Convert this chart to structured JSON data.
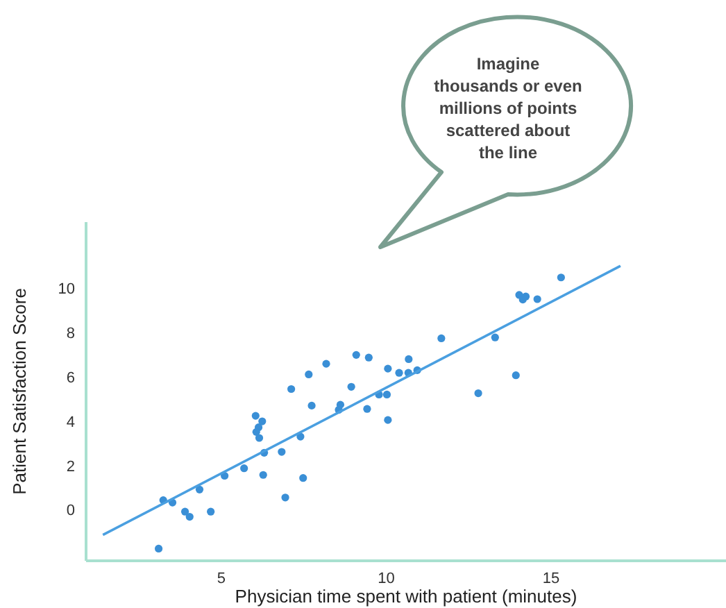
{
  "chart_data": {
    "type": "scatter",
    "xlabel": "Physician time spent with patient (minutes)",
    "ylabel": "Patient Satisfaction Score",
    "xlim": [
      0.9,
      20.3
    ],
    "ylim": [
      -2.3,
      13
    ],
    "xticks": [
      5,
      10,
      15
    ],
    "yticks": [
      0,
      2,
      4,
      6,
      8,
      10
    ],
    "grid": false,
    "legend": false,
    "marker": "circle",
    "annotations": [
      "Imagine thousands or even millions of points scattered about the line"
    ],
    "series": [
      {
        "color": "#3a8fd6",
        "x": [
          3.1,
          3.24,
          3.52,
          3.9,
          4.04,
          4.34,
          4.68,
          5.1,
          5.69,
          6.04,
          6.13,
          6.24,
          6.06,
          6.15,
          6.3,
          6.27,
          6.83,
          6.94,
          7.12,
          7.4,
          7.48,
          7.65,
          7.74,
          8.18,
          8.61,
          8.56,
          8.94,
          9.09,
          9.42,
          9.47,
          9.78,
          10.02,
          10.05,
          10.05,
          10.39,
          10.68,
          10.67,
          10.94,
          11.67,
          12.79,
          13.3,
          13.93,
          14.03,
          14.14,
          14.23,
          14.58,
          15.3
        ],
        "values": [
          -1.75,
          0.44,
          0.33,
          -0.08,
          -0.31,
          0.92,
          -0.08,
          1.54,
          1.88,
          4.25,
          3.73,
          4.0,
          3.52,
          3.25,
          2.58,
          1.58,
          2.62,
          0.56,
          5.46,
          3.31,
          1.44,
          6.12,
          4.71,
          6.6,
          4.75,
          4.52,
          5.56,
          7.0,
          4.56,
          6.88,
          5.21,
          5.21,
          6.38,
          4.06,
          6.19,
          6.81,
          6.19,
          6.31,
          7.75,
          5.27,
          7.79,
          6.08,
          9.71,
          9.5,
          9.64,
          9.52,
          10.5
        ]
      },
      {
        "type": "line",
        "color": "#4a9fe0",
        "x": [
          1.41,
          17.1
        ],
        "values": [
          -1.13,
          11.02
        ],
        "marker": "none",
        "line_style": "solid"
      }
    ]
  }
}
